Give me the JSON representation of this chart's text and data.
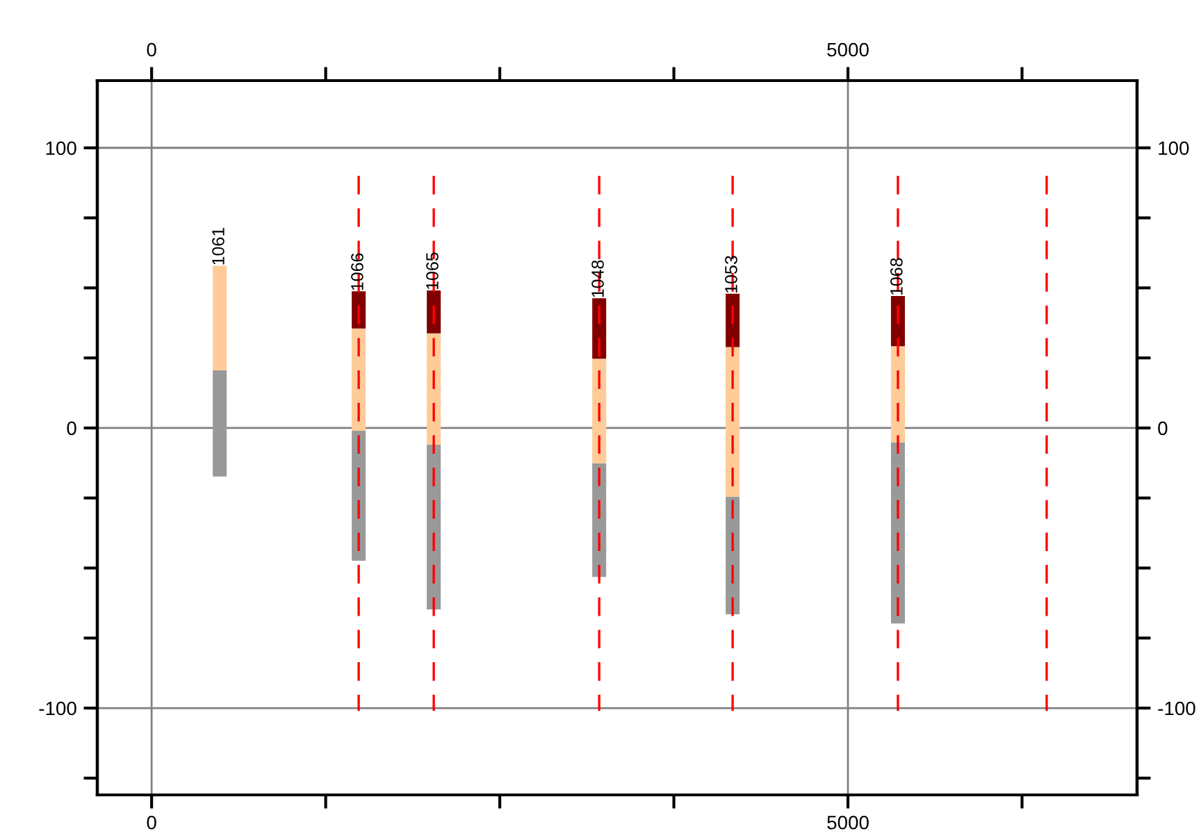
{
  "chart_data": {
    "type": "bar",
    "x": [
      489,
      1487,
      2026,
      3214,
      4172,
      5359
    ],
    "series": [
      {
        "color": "#999999",
        "base": [
          -17.3,
          -47.4,
          -64.8,
          -53.2,
          -66.5,
          -69.8
        ],
        "values": [
          37.9,
          46.4,
          58.8,
          40.6,
          42.0,
          64.7
        ]
      },
      {
        "color": "#ffcc99",
        "base": [
          20.6,
          -1.0,
          -6.0,
          -12.6,
          -24.5,
          -5.1
        ],
        "values": [
          37.3,
          36.5,
          39.8,
          37.3,
          53.4,
          34.3
        ]
      },
      {
        "color": "#800000",
        "base": [
          null,
          35.5,
          33.8,
          24.7,
          28.9,
          29.2
        ],
        "values": [
          null,
          13.3,
          15.3,
          21.6,
          19.0,
          17.9
        ]
      },
      {
        "type": "line",
        "color": "#ff0000",
        "line_style": "dashed",
        "x": [
          1487,
          1487
        ],
        "values": [
          90,
          -101
        ]
      },
      {
        "type": "line",
        "color": "#ff0000",
        "line_style": "dashed",
        "x": [
          2026,
          2026
        ],
        "values": [
          90,
          -101
        ]
      },
      {
        "type": "line",
        "color": "#ff0000",
        "line_style": "dashed",
        "x": [
          3214,
          3214
        ],
        "values": [
          90,
          -101
        ]
      },
      {
        "type": "line",
        "color": "#ff0000",
        "line_style": "dashed",
        "x": [
          4172,
          4172
        ],
        "values": [
          90,
          -101
        ]
      },
      {
        "type": "line",
        "color": "#ff0000",
        "line_style": "dashed",
        "x": [
          5359,
          5359
        ],
        "values": [
          90,
          -101
        ]
      },
      {
        "type": "line",
        "color": "#ff0000",
        "line_style": "dashed",
        "x": [
          6427,
          6427
        ],
        "values": [
          90,
          -101
        ]
      }
    ],
    "annotations": [
      {
        "text": "1061",
        "x": 489,
        "y": 57.9
      },
      {
        "text": "1066",
        "x": 1487,
        "y": 48.8
      },
      {
        "text": "1065",
        "x": 2026,
        "y": 49.1
      },
      {
        "text": "1048",
        "x": 3214,
        "y": 46.3
      },
      {
        "text": "1053",
        "x": 4172,
        "y": 47.9
      },
      {
        "text": "1068",
        "x": 5359,
        "y": 47.1
      }
    ],
    "xlim": [
      -390,
      7076
    ],
    "xticks": [
      0,
      {
        "value": 1250,
        "label": null
      },
      {
        "value": 2500,
        "label": null
      },
      {
        "value": 3750,
        "label": null
      },
      5000,
      {
        "value": 6250,
        "label": null
      }
    ],
    "x2lim": [
      -390,
      7076
    ],
    "x2ticks": [
      0,
      {
        "value": 1250,
        "label": null
      },
      {
        "value": 2500,
        "label": null
      },
      {
        "value": 3750,
        "label": null
      },
      5000,
      {
        "value": 6250,
        "label": null
      }
    ],
    "ylim": [
      -131,
      124
    ],
    "yticks": [
      {
        "value": -125,
        "label": null
      },
      -100,
      {
        "value": -75,
        "label": null
      },
      {
        "value": -50,
        "label": null
      },
      {
        "value": -25,
        "label": null
      },
      0,
      {
        "value": 25,
        "label": null
      },
      {
        "value": 50,
        "label": null
      },
      {
        "value": 75,
        "label": null
      },
      100
    ],
    "y2lim": [
      -131,
      124
    ],
    "y2ticks": [
      {
        "value": -125,
        "label": null
      },
      -100,
      {
        "value": -75,
        "label": null
      },
      {
        "value": -50,
        "label": null
      },
      {
        "value": -25,
        "label": null
      },
      0,
      {
        "value": 25,
        "label": null
      },
      {
        "value": 50,
        "label": null
      },
      {
        "value": 75,
        "label": null
      },
      100
    ],
    "grid": true,
    "legend": false
  }
}
